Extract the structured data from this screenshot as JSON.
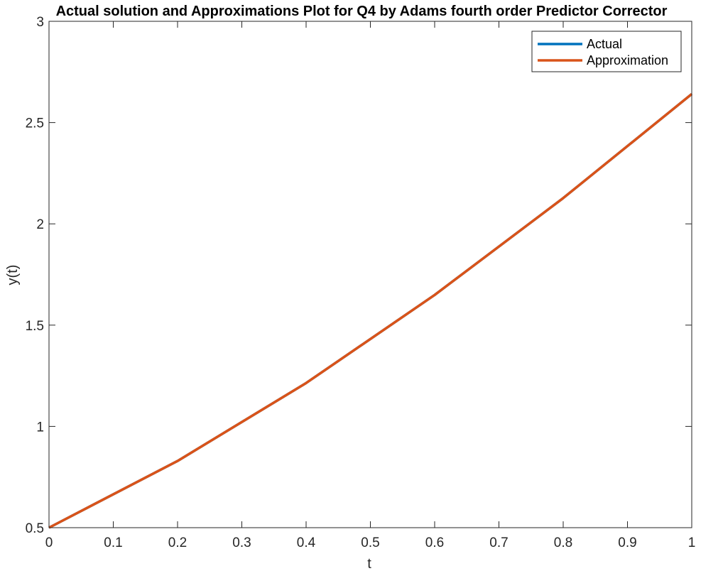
{
  "chart_data": {
    "type": "line",
    "title": "Actual solution and Approximations Plot for Q4 by Adams fourth order Predictor Corrector",
    "xlabel": "t",
    "ylabel": "y(t)",
    "xlim": [
      0,
      1
    ],
    "ylim": [
      0.5,
      3
    ],
    "x_ticks": [
      0,
      0.1,
      0.2,
      0.3,
      0.4,
      0.5,
      0.6,
      0.7,
      0.8,
      0.9,
      1
    ],
    "x_tick_labels": [
      "0",
      "0.1",
      "0.2",
      "0.3",
      "0.4",
      "0.5",
      "0.6",
      "0.7",
      "0.8",
      "0.9",
      "1"
    ],
    "y_ticks": [
      0.5,
      1,
      1.5,
      2,
      2.5,
      3
    ],
    "y_tick_labels": [
      "0.5",
      "1",
      "1.5",
      "2",
      "2.5",
      "3"
    ],
    "grid": false,
    "legend_position": "top-right",
    "series": [
      {
        "name": "Actual",
        "color": "#0072BD",
        "x": [
          0,
          0.2,
          0.4,
          0.6,
          0.8,
          1.0
        ],
        "y": [
          0.5,
          0.8293,
          1.2141,
          1.6489,
          2.1272,
          2.6409
        ]
      },
      {
        "name": "Approximation",
        "color": "#D95319",
        "x": [
          0,
          0.2,
          0.4,
          0.6,
          0.8,
          1.0
        ],
        "y": [
          0.5,
          0.8293,
          1.2141,
          1.6489,
          2.1272,
          2.6409
        ]
      }
    ]
  }
}
